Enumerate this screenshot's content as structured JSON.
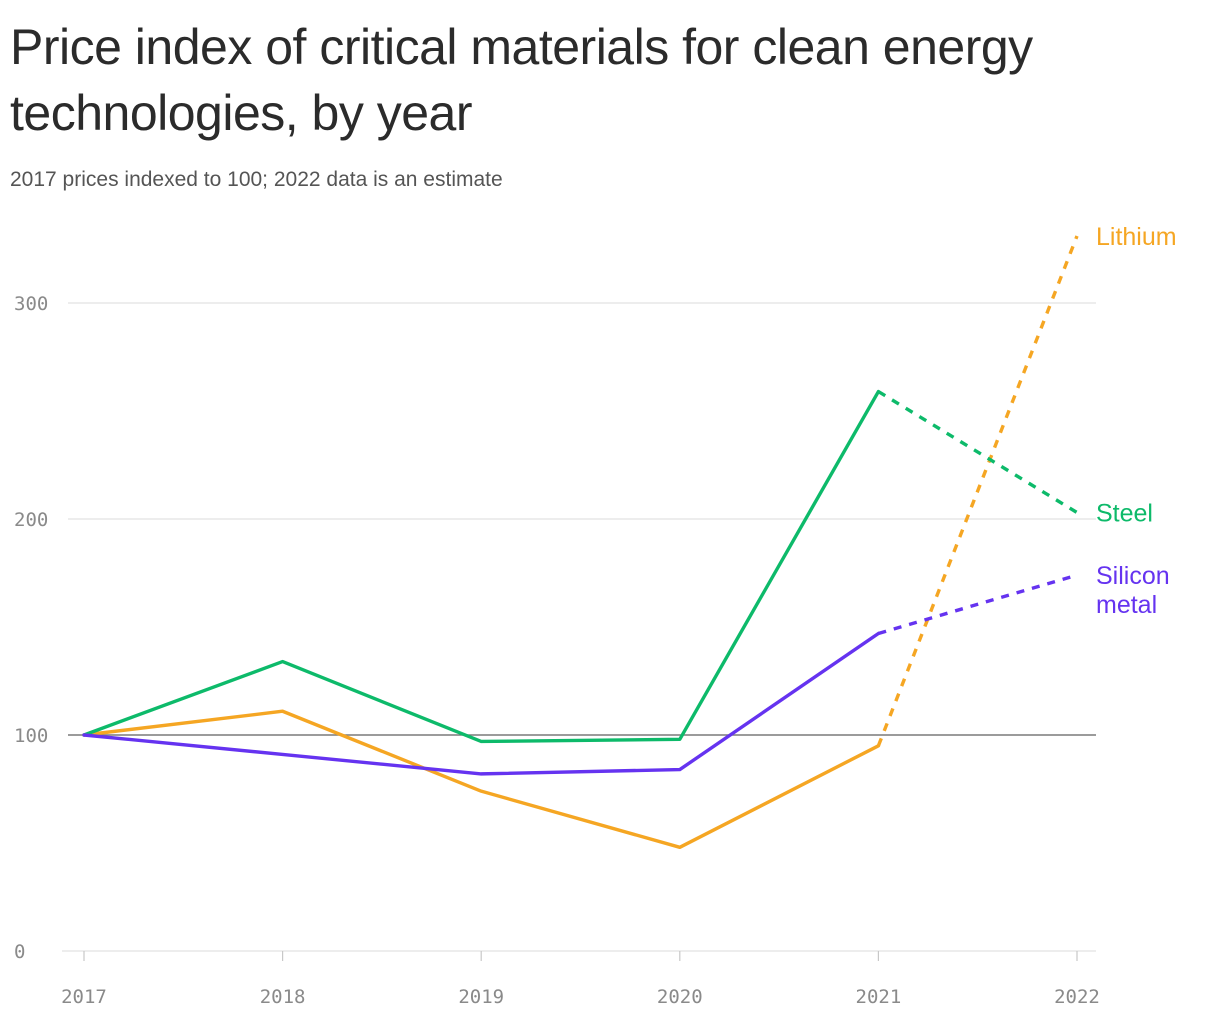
{
  "chart_data": {
    "type": "line",
    "title": "Price index of critical materials for clean energy technologies, by year",
    "subtitle": "2017 prices indexed to 100; 2022 data is an estimate",
    "x": [
      "2017",
      "2018",
      "2019",
      "2020",
      "2021",
      "2022"
    ],
    "ylim": [
      0,
      330
    ],
    "yticks": [
      "0",
      "100",
      "200",
      "300"
    ],
    "baseline": 100,
    "grid": true,
    "estimate_from_index": 4,
    "series": [
      {
        "name": "Lithium",
        "label_lines": [
          "Lithium"
        ],
        "color": "#f5a623",
        "values": [
          100,
          111,
          74,
          48,
          95,
          331
        ]
      },
      {
        "name": "Steel",
        "label_lines": [
          "Steel"
        ],
        "color": "#0dba6a",
        "values": [
          100,
          134,
          97,
          98,
          259,
          203
        ]
      },
      {
        "name": "Silicon metal",
        "label_lines": [
          "Silicon",
          "metal"
        ],
        "color": "#6533f0",
        "values": [
          100,
          91,
          82,
          84,
          147,
          174
        ]
      }
    ]
  }
}
